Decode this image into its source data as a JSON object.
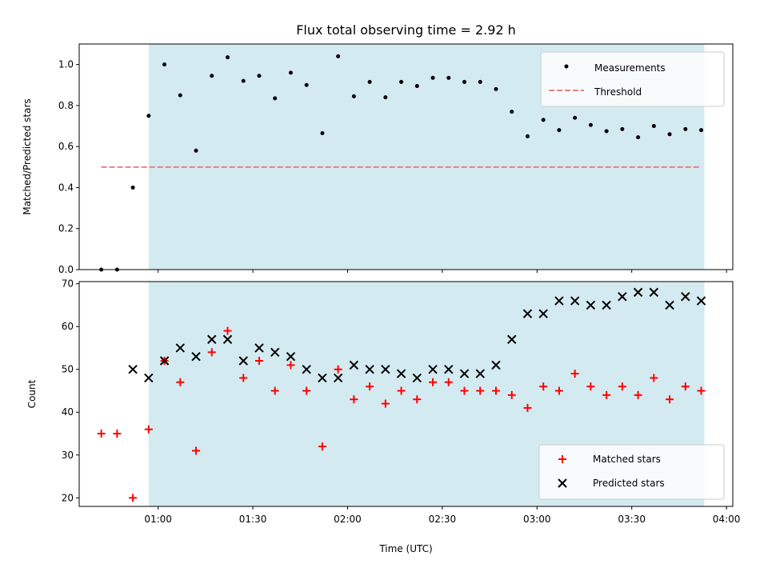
{
  "chart_data": [
    {
      "type": "scatter",
      "title": "Flux total observing time = 2.92 h",
      "ylabel": "Matched/Predicted stars",
      "xlabel": "",
      "ylim": [
        0,
        1.1
      ],
      "yticks": [
        0.0,
        0.2,
        0.4,
        0.6,
        0.8,
        1.0
      ],
      "ytick_labels": [
        "0.0",
        "0.2",
        "0.4",
        "0.6",
        "0.8",
        "1.0"
      ],
      "xlim": [
        "00:35",
        "04:02"
      ],
      "grid": false,
      "legend": "top-right",
      "shaded_interval": [
        "00:57",
        "03:53"
      ],
      "shade_color": "#d4eaf1",
      "series": [
        {
          "name": "Measurements",
          "marker": "dot",
          "color": "#000000",
          "x": [
            "00:52",
            "00:57",
            "01:02",
            "01:07",
            "01:12",
            "01:17",
            "01:22",
            "01:27",
            "01:32",
            "01:37",
            "01:42",
            "01:47",
            "01:52",
            "01:57",
            "02:02",
            "02:07",
            "02:12",
            "02:17",
            "02:22",
            "02:27",
            "02:32",
            "02:37",
            "02:42",
            "02:47",
            "02:52",
            "02:57",
            "03:02",
            "03:07",
            "03:12",
            "03:17",
            "03:22",
            "03:27",
            "03:32",
            "03:37",
            "03:42",
            "03:47",
            "03:52"
          ],
          "values": [
            0.4,
            0.75,
            1.0,
            0.85,
            0.58,
            0.945,
            1.035,
            0.92,
            0.945,
            0.835,
            0.96,
            0.9,
            0.665,
            1.04,
            0.845,
            0.915,
            0.84,
            0.915,
            0.895,
            0.935,
            0.935,
            0.915,
            0.915,
            0.88,
            0.77,
            0.65,
            0.73,
            0.68,
            0.74,
            0.705,
            0.675,
            0.685,
            0.645,
            0.7,
            0.66,
            0.685,
            0.68
          ]
        },
        {
          "name": "Threshold",
          "style": "dashed",
          "color": "#f08080",
          "x": [
            "00:42",
            "03:52"
          ],
          "values": [
            0.5,
            0.5
          ]
        }
      ],
      "extra_points": {
        "x": [
          "00:42",
          "00:47"
        ],
        "values": [
          0.0,
          0.0
        ]
      }
    },
    {
      "type": "scatter",
      "title": "",
      "ylabel": "Count",
      "xlabel": "Time (UTC)",
      "ylim": [
        18,
        70.5
      ],
      "yticks": [
        20,
        30,
        40,
        50,
        60,
        70
      ],
      "ytick_labels": [
        "20",
        "30",
        "40",
        "50",
        "60",
        "70"
      ],
      "xlim": [
        "00:35",
        "04:02"
      ],
      "xticks": [
        "01:00",
        "01:30",
        "02:00",
        "02:30",
        "03:00",
        "03:30",
        "04:00"
      ],
      "xtick_labels": [
        "01:00",
        "01:30",
        "02:00",
        "02:30",
        "03:00",
        "03:30",
        "04:00"
      ],
      "grid": false,
      "legend": "bottom-right",
      "shaded_interval": [
        "00:57",
        "03:53"
      ],
      "shade_color": "#d4eaf1",
      "series": [
        {
          "name": "Matched stars",
          "marker": "plus",
          "color": "#ff0000",
          "x": [
            "00:42",
            "00:47",
            "00:52",
            "00:57",
            "01:02",
            "01:07",
            "01:12",
            "01:17",
            "01:22",
            "01:27",
            "01:32",
            "01:37",
            "01:42",
            "01:47",
            "01:52",
            "01:57",
            "02:02",
            "02:07",
            "02:12",
            "02:17",
            "02:22",
            "02:27",
            "02:32",
            "02:37",
            "02:42",
            "02:47",
            "02:52",
            "02:57",
            "03:02",
            "03:07",
            "03:12",
            "03:17",
            "03:22",
            "03:27",
            "03:32",
            "03:37",
            "03:42",
            "03:47",
            "03:52"
          ],
          "values": [
            35,
            35,
            20,
            36,
            52,
            47,
            31,
            54,
            59,
            48,
            52,
            45,
            51,
            45,
            32,
            50,
            43,
            46,
            42,
            45,
            43,
            47,
            47,
            45,
            45,
            45,
            44,
            41,
            46,
            45,
            49,
            46,
            44,
            46,
            44,
            48,
            43,
            46,
            45
          ]
        },
        {
          "name": "Predicted stars",
          "marker": "x",
          "color": "#000000",
          "x": [
            "00:52",
            "00:57",
            "01:02",
            "01:07",
            "01:12",
            "01:17",
            "01:22",
            "01:27",
            "01:32",
            "01:37",
            "01:42",
            "01:47",
            "01:52",
            "01:57",
            "02:02",
            "02:07",
            "02:12",
            "02:17",
            "02:22",
            "02:27",
            "02:32",
            "02:37",
            "02:42",
            "02:47",
            "02:52",
            "02:57",
            "03:02",
            "03:07",
            "03:12",
            "03:17",
            "03:22",
            "03:27",
            "03:32",
            "03:37",
            "03:42",
            "03:47",
            "03:52"
          ],
          "values": [
            50,
            48,
            52,
            55,
            53,
            57,
            57,
            52,
            55,
            54,
            53,
            50,
            48,
            48,
            51,
            50,
            50,
            49,
            48,
            50,
            50,
            49,
            49,
            51,
            57,
            63,
            63,
            66,
            66,
            65,
            65,
            67,
            68,
            68,
            65,
            67,
            66
          ]
        }
      ]
    }
  ]
}
